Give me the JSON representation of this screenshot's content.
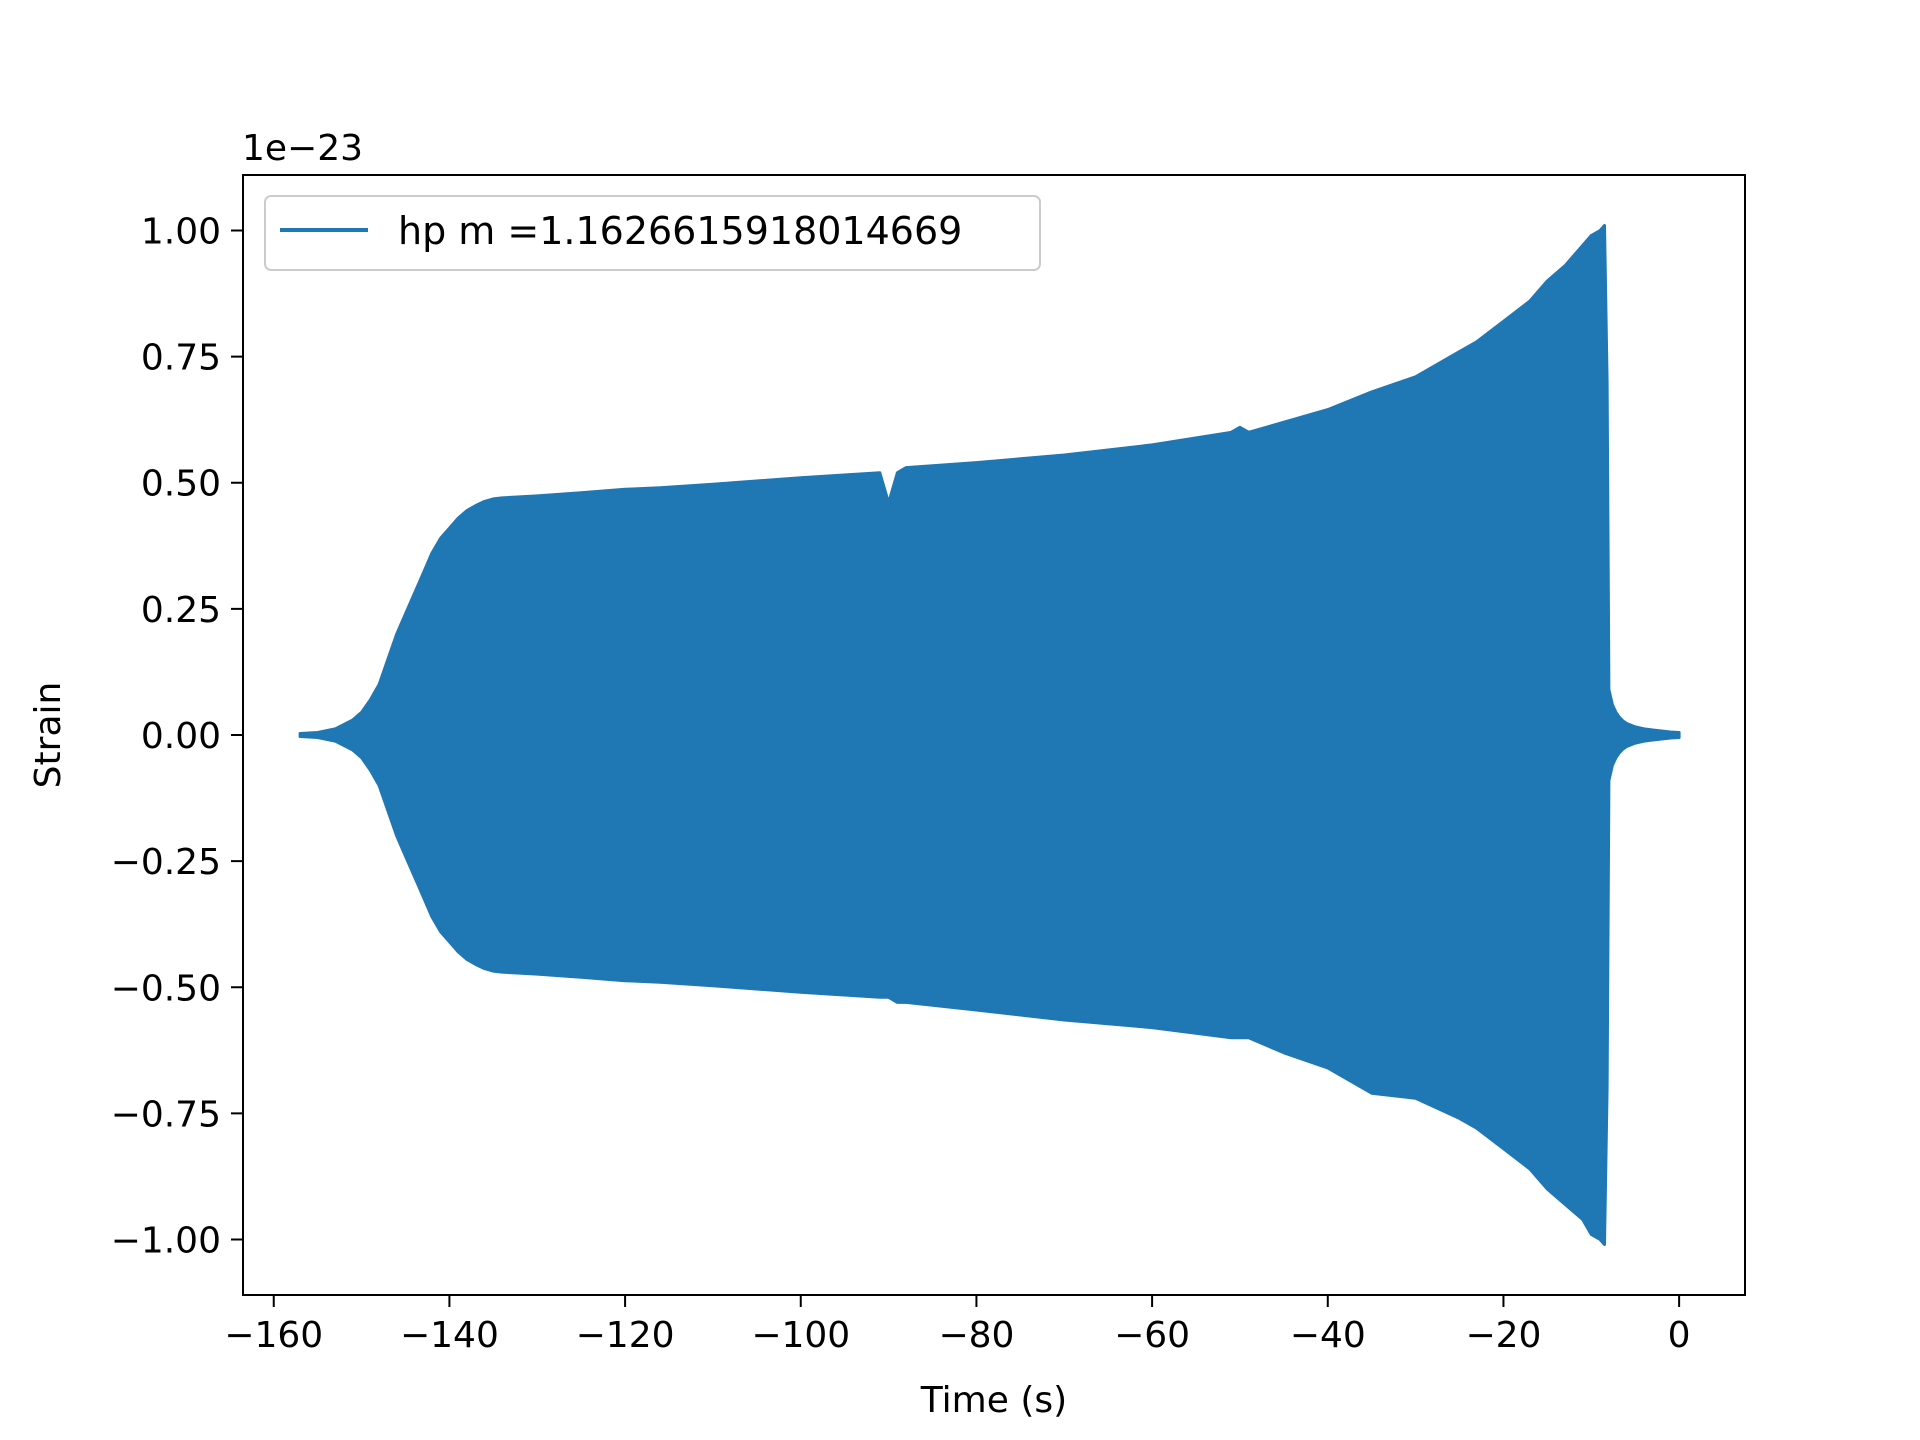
{
  "chart_data": {
    "type": "line",
    "title": "",
    "xlabel": "Time (s)",
    "ylabel": "Strain",
    "y_offset_label": "1e−23",
    "y_multiplier": 1e-23,
    "xlim": [
      -163.5,
      7.5
    ],
    "ylim": [
      -1.11,
      1.11
    ],
    "x_ticks": [
      {
        "value": -160,
        "label": "−160"
      },
      {
        "value": -140,
        "label": "−140"
      },
      {
        "value": -120,
        "label": "−120"
      },
      {
        "value": -100,
        "label": "−100"
      },
      {
        "value": -80,
        "label": "−80"
      },
      {
        "value": -60,
        "label": "−60"
      },
      {
        "value": -40,
        "label": "−40"
      },
      {
        "value": -20,
        "label": "−20"
      },
      {
        "value": 0,
        "label": "0"
      }
    ],
    "y_ticks": [
      {
        "value": 1.0,
        "label": "1.00"
      },
      {
        "value": 0.75,
        "label": "0.75"
      },
      {
        "value": 0.5,
        "label": "0.50"
      },
      {
        "value": 0.25,
        "label": "0.25"
      },
      {
        "value": 0.0,
        "label": "0.00"
      },
      {
        "value": -0.25,
        "label": "−0.25"
      },
      {
        "value": -0.5,
        "label": "−0.50"
      },
      {
        "value": -0.75,
        "label": "−0.75"
      },
      {
        "value": -1.0,
        "label": "−1.00"
      }
    ],
    "grid": false,
    "legend_position": "upper-left",
    "series": [
      {
        "name": "hp m =1.1626615918014669",
        "color": "#1f77b4",
        "envelope": {
          "t": [
            -157,
            -155,
            -153,
            -151,
            -150,
            -149,
            -148,
            -147,
            -146,
            -145,
            -144,
            -143,
            -142,
            -141,
            -140,
            -139,
            -138,
            -137,
            -136,
            -135,
            -134,
            -130,
            -125,
            -120,
            -116,
            -110,
            -100,
            -91,
            -90,
            -89,
            -88,
            -80,
            -70,
            -60,
            -51,
            -50,
            -49,
            -45,
            -40,
            -35,
            -30,
            -25,
            -23,
            -20,
            -17,
            -15,
            -13,
            -11,
            -10,
            -9,
            -8.5,
            -8.2,
            -8,
            -7.6,
            -7.2,
            -6.8,
            -6.4,
            -6,
            -5,
            -4,
            -3,
            -2,
            -1,
            0
          ],
          "upper": [
            0.003,
            0.005,
            0.012,
            0.03,
            0.045,
            0.07,
            0.1,
            0.15,
            0.2,
            0.24,
            0.28,
            0.32,
            0.36,
            0.39,
            0.41,
            0.43,
            0.445,
            0.455,
            0.463,
            0.468,
            0.47,
            0.474,
            0.48,
            0.487,
            0.49,
            0.497,
            0.51,
            0.52,
            0.46,
            0.52,
            0.53,
            0.54,
            0.555,
            0.575,
            0.6,
            0.61,
            0.6,
            0.62,
            0.645,
            0.68,
            0.71,
            0.76,
            0.78,
            0.82,
            0.86,
            0.9,
            0.93,
            0.97,
            0.99,
            1.0,
            1.01,
            0.7,
            0.09,
            0.06,
            0.045,
            0.035,
            0.028,
            0.023,
            0.016,
            0.012,
            0.01,
            0.008,
            0.006,
            0.005
          ],
          "lower": [
            -0.003,
            -0.005,
            -0.012,
            -0.03,
            -0.045,
            -0.07,
            -0.1,
            -0.15,
            -0.2,
            -0.24,
            -0.28,
            -0.32,
            -0.36,
            -0.39,
            -0.41,
            -0.43,
            -0.445,
            -0.455,
            -0.463,
            -0.468,
            -0.47,
            -0.474,
            -0.48,
            -0.487,
            -0.49,
            -0.497,
            -0.51,
            -0.52,
            -0.52,
            -0.53,
            -0.53,
            -0.545,
            -0.565,
            -0.58,
            -0.6,
            -0.6,
            -0.6,
            -0.63,
            -0.66,
            -0.71,
            -0.72,
            -0.76,
            -0.78,
            -0.82,
            -0.86,
            -0.9,
            -0.93,
            -0.96,
            -0.99,
            -1.0,
            -1.01,
            -0.7,
            -0.09,
            -0.06,
            -0.045,
            -0.035,
            -0.028,
            -0.023,
            -0.016,
            -0.012,
            -0.01,
            -0.008,
            -0.006,
            -0.005
          ]
        }
      }
    ]
  }
}
